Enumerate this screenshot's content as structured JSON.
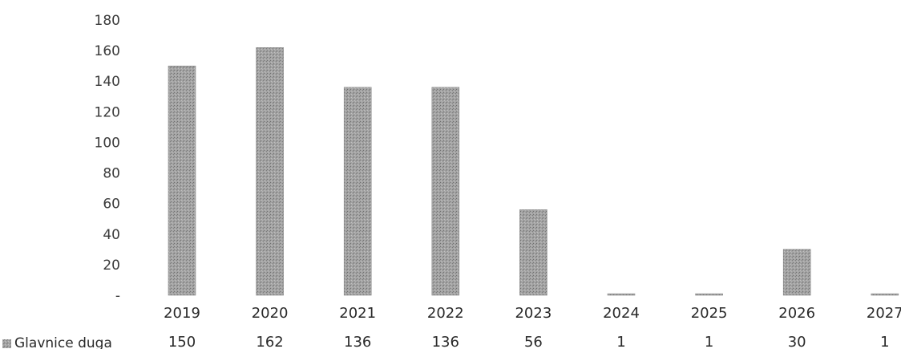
{
  "chart_data": {
    "type": "bar",
    "categories": [
      "2019",
      "2020",
      "2021",
      "2022",
      "2023",
      "2024",
      "2025",
      "2026",
      "2027"
    ],
    "series": [
      {
        "name": "Glavnice duga",
        "values": [
          150,
          162,
          136,
          136,
          56,
          1,
          1,
          30,
          1
        ],
        "color": "#9a9a9a"
      }
    ],
    "yticks": [
      "-",
      "20",
      "40",
      "60",
      "80",
      "100",
      "120",
      "140",
      "160",
      "180"
    ],
    "ylim": [
      0,
      180
    ],
    "grid": false,
    "legend": "data-table-left"
  }
}
